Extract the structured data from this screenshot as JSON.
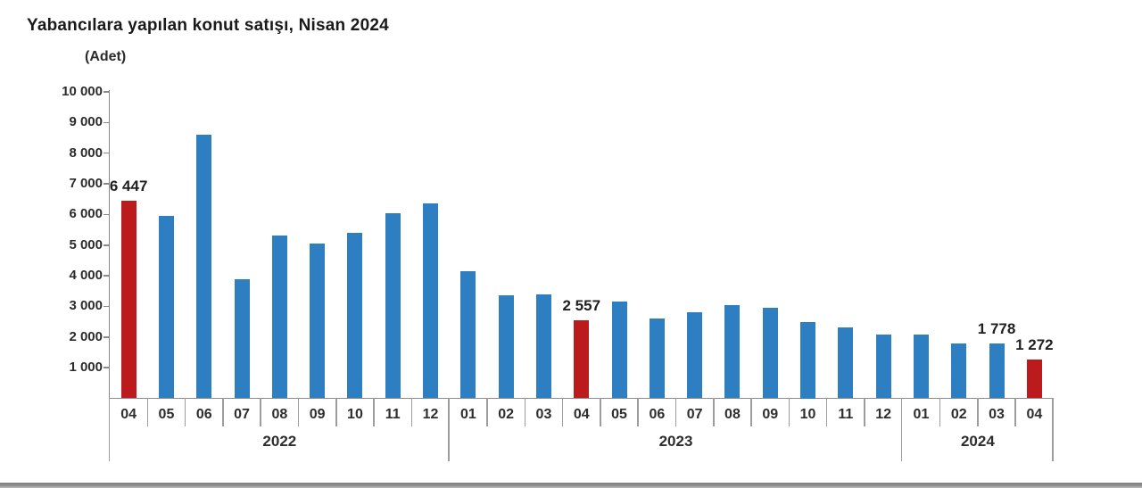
{
  "chart_data": {
    "type": "bar",
    "title": "Yabancılara yapılan konut satışı, Nisan 2024",
    "unit": "(Adet)",
    "ylim": [
      0,
      10000
    ],
    "ytick_step": 1000,
    "ytick_labels": [
      "10 000",
      "9 000",
      "8 000",
      "7 000",
      "6 000",
      "5 000",
      "4 000",
      "3 000",
      "2 000",
      "1 000"
    ],
    "grid": false,
    "legend": "none",
    "bar_colors": {
      "default": "#2e7fc2",
      "highlight": "#bc1b1e"
    },
    "year_groups": [
      {
        "label": "2022",
        "span": 9
      },
      {
        "label": "2023",
        "span": 12
      },
      {
        "label": "2024",
        "span": 4
      }
    ],
    "points": [
      {
        "year": "2022",
        "month": "04",
        "value": 6447,
        "highlight": true,
        "label": "6 447"
      },
      {
        "year": "2022",
        "month": "05",
        "value": 5950
      },
      {
        "year": "2022",
        "month": "06",
        "value": 8600
      },
      {
        "year": "2022",
        "month": "07",
        "value": 3900
      },
      {
        "year": "2022",
        "month": "08",
        "value": 5300
      },
      {
        "year": "2022",
        "month": "09",
        "value": 5050
      },
      {
        "year": "2022",
        "month": "10",
        "value": 5400
      },
      {
        "year": "2022",
        "month": "11",
        "value": 6050
      },
      {
        "year": "2022",
        "month": "12",
        "value": 6350
      },
      {
        "year": "2023",
        "month": "01",
        "value": 4150
      },
      {
        "year": "2023",
        "month": "02",
        "value": 3350
      },
      {
        "year": "2023",
        "month": "03",
        "value": 3400
      },
      {
        "year": "2023",
        "month": "04",
        "value": 2557,
        "highlight": true,
        "label": "2 557"
      },
      {
        "year": "2023",
        "month": "05",
        "value": 3150
      },
      {
        "year": "2023",
        "month": "06",
        "value": 2600
      },
      {
        "year": "2023",
        "month": "07",
        "value": 2800
      },
      {
        "year": "2023",
        "month": "08",
        "value": 3050
      },
      {
        "year": "2023",
        "month": "09",
        "value": 2950
      },
      {
        "year": "2023",
        "month": "10",
        "value": 2500
      },
      {
        "year": "2023",
        "month": "11",
        "value": 2300
      },
      {
        "year": "2023",
        "month": "12",
        "value": 2070
      },
      {
        "year": "2024",
        "month": "01",
        "value": 2070
      },
      {
        "year": "2024",
        "month": "02",
        "value": 1800
      },
      {
        "year": "2024",
        "month": "03",
        "value": 1778,
        "label": "1 778"
      },
      {
        "year": "2024",
        "month": "04",
        "value": 1272,
        "highlight": true,
        "label": "1 272"
      }
    ]
  }
}
